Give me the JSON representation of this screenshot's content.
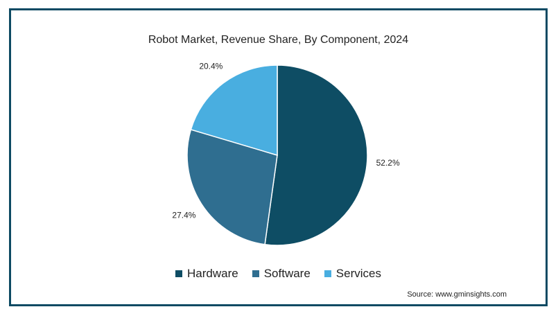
{
  "chart_data": {
    "type": "pie",
    "title": "Robot Market, Revenue Share, By Component, 2024",
    "categories": [
      "Hardware",
      "Software",
      "Services"
    ],
    "values": [
      52.2,
      27.4,
      20.4
    ],
    "value_labels": [
      "52.2%",
      "27.4%",
      "20.4%"
    ],
    "colors": [
      "#0e4d64",
      "#2f6e90",
      "#49aee0"
    ],
    "legend_position": "bottom",
    "source": "Source: www.gminsights.com"
  }
}
